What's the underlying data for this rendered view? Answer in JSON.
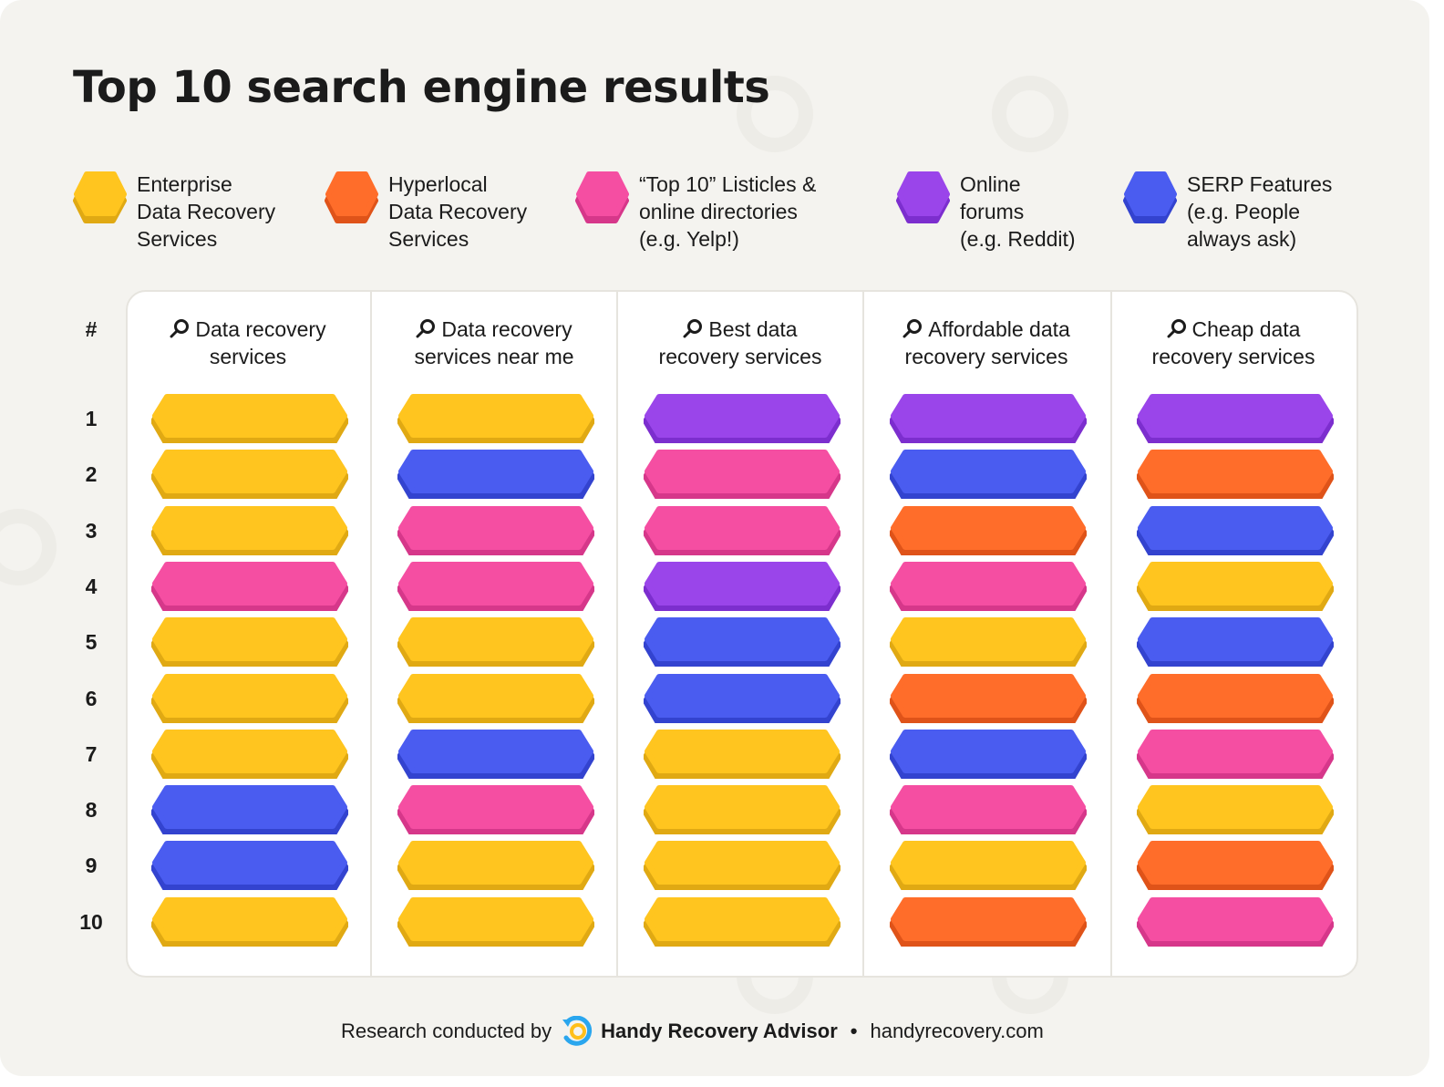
{
  "title": "Top 10 search engine results",
  "legend": [
    {
      "key": "enterprise",
      "lines": [
        "Enterprise",
        "Data Recovery",
        "Services"
      ],
      "color": "#ffc51f",
      "shade": "#e0a913"
    },
    {
      "key": "hyperlocal",
      "lines": [
        "Hyperlocal",
        "Data Recovery",
        "Services"
      ],
      "color": "#ff6d2a",
      "shade": "#df5319"
    },
    {
      "key": "listicles",
      "lines": [
        "“Top 10” Listicles &",
        "online directories",
        "(e.g. Yelp!)"
      ],
      "color": "#f54ea2",
      "shade": "#d6378a"
    },
    {
      "key": "forums",
      "lines": [
        "Online",
        "forums",
        "(e.g. Reddit)"
      ],
      "color": "#9a45ea",
      "shade": "#7c2ece"
    },
    {
      "key": "serp",
      "lines": [
        "SERP Features",
        "(e.g. People",
        "always ask)"
      ],
      "color": "#4a5cf0",
      "shade": "#3343cf"
    }
  ],
  "rank_header": "#",
  "chart_data": {
    "type": "table",
    "title": "Top 10 search engine results",
    "ranks": [
      1,
      2,
      3,
      4,
      5,
      6,
      7,
      8,
      9,
      10
    ],
    "queries": [
      {
        "lines": [
          "Data recovery",
          "services"
        ],
        "results": [
          "enterprise",
          "enterprise",
          "enterprise",
          "listicles",
          "enterprise",
          "enterprise",
          "enterprise",
          "serp",
          "serp",
          "enterprise"
        ]
      },
      {
        "lines": [
          "Data recovery",
          "services near me"
        ],
        "results": [
          "enterprise",
          "serp",
          "listicles",
          "listicles",
          "enterprise",
          "enterprise",
          "serp",
          "listicles",
          "enterprise",
          "enterprise"
        ]
      },
      {
        "lines": [
          "Best data",
          "recovery services"
        ],
        "results": [
          "forums",
          "listicles",
          "listicles",
          "forums",
          "serp",
          "serp",
          "enterprise",
          "enterprise",
          "enterprise",
          "enterprise"
        ]
      },
      {
        "lines": [
          "Affordable data",
          "recovery services"
        ],
        "results": [
          "forums",
          "serp",
          "hyperlocal",
          "listicles",
          "enterprise",
          "hyperlocal",
          "serp",
          "listicles",
          "enterprise",
          "hyperlocal"
        ]
      },
      {
        "lines": [
          "Cheap data",
          "recovery services"
        ],
        "results": [
          "forums",
          "hyperlocal",
          "serp",
          "enterprise",
          "serp",
          "hyperlocal",
          "listicles",
          "enterprise",
          "hyperlocal",
          "listicles"
        ]
      }
    ]
  },
  "footer": {
    "prefix": "Research conducted by",
    "brand": "Handy Recovery Advisor",
    "separator": "•",
    "url": "handyrecovery.com"
  }
}
